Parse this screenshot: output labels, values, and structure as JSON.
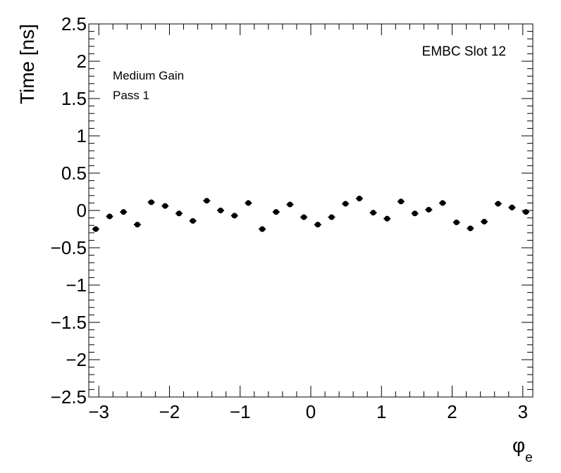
{
  "chart_data": {
    "type": "scatter",
    "xlabel_symbol": "φ",
    "xlabel_subscript": "e",
    "ylabel": "Time [ns]",
    "xlim": [
      -3.14159,
      3.14159
    ],
    "ylim": [
      -2.5,
      2.5
    ],
    "xticks": [
      -3,
      -2,
      -1,
      0,
      1,
      2,
      3
    ],
    "xtick_labels": [
      "−3",
      "−2",
      "−1",
      "0",
      "1",
      "2",
      "3"
    ],
    "yticks": [
      -2.5,
      -2,
      -1.5,
      -1,
      -0.5,
      0,
      0.5,
      1,
      1.5,
      2,
      2.5
    ],
    "ytick_labels": [
      "−2.5",
      "−2",
      "−1.5",
      "−1",
      "−0.5",
      "0",
      "0.5",
      "1",
      "1.5",
      "2",
      "2.5"
    ],
    "annotations": {
      "slot": "EMBC Slot 12",
      "gain": "Medium Gain",
      "pass": "Pass 1"
    },
    "grid": false,
    "bin_half_width": 0.0491,
    "series": [
      {
        "x": [
          -3.0434,
          -2.8471,
          -2.6507,
          -2.4544,
          -2.258,
          -2.0617,
          -1.8653,
          -1.669,
          -1.4726,
          -1.2763,
          -1.0799,
          -0.8836,
          -0.6872,
          -0.4909,
          -0.2945,
          -0.0982,
          0.0982,
          0.2945,
          0.4909,
          0.6872,
          0.8836,
          1.0799,
          1.2763,
          1.4726,
          1.669,
          1.8653,
          2.0617,
          2.258,
          2.4544,
          2.6507,
          2.8471,
          3.0434
        ],
        "values": [
          -0.25,
          -0.08,
          -0.02,
          -0.19,
          0.11,
          0.06,
          -0.04,
          -0.14,
          0.13,
          0.0,
          -0.07,
          0.1,
          -0.25,
          -0.02,
          0.08,
          -0.09,
          -0.19,
          -0.09,
          0.09,
          0.16,
          -0.03,
          -0.11,
          0.12,
          -0.04,
          0.01,
          0.1,
          -0.16,
          -0.24,
          -0.15,
          0.09,
          0.04,
          -0.02
        ]
      }
    ]
  }
}
